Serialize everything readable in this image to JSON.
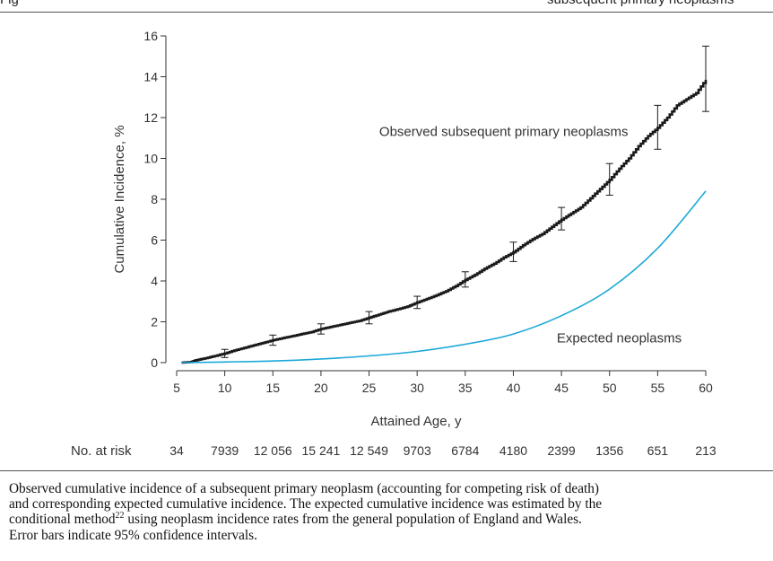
{
  "header": {
    "left_fragment": "Fig",
    "right_fragment": "subsequent primary neoplasms"
  },
  "caption": {
    "line1": "Observed cumulative incidence of a subsequent primary neoplasm (accounting for competing risk of death)",
    "line2": "and corresponding expected cumulative incidence. The expected cumulative incidence was estimated by the",
    "line3_before_ref": "conditional method",
    "line3_ref": "22",
    "line3_after_ref": " using neoplasm incidence rates from the general population of England and Wales.",
    "line4": "Error bars indicate 95% confidence intervals."
  },
  "colors": {
    "observed": "#1a1a1a",
    "expected": "#1ba8d8",
    "axis": "#333333"
  },
  "chart_data": {
    "type": "line",
    "xlabel": "Attained Age, y",
    "ylabel": "Cumulative Incidence, %",
    "xlim": [
      5,
      60
    ],
    "ylim": [
      0,
      16
    ],
    "xticks": [
      5,
      10,
      15,
      20,
      25,
      30,
      35,
      40,
      45,
      50,
      55,
      60
    ],
    "yticks": [
      0,
      2,
      4,
      6,
      8,
      10,
      12,
      14,
      16
    ],
    "grid": false,
    "series": [
      {
        "name": "Observed subsequent primary neoplasms",
        "style": "step",
        "x": [
          5.5,
          6.5,
          7,
          8,
          9,
          10,
          11,
          12,
          13,
          14,
          15,
          16,
          17,
          18,
          19,
          20,
          21,
          22,
          23,
          24,
          25,
          26,
          27,
          28,
          29,
          30,
          31,
          32,
          33,
          34,
          35,
          36,
          37,
          38,
          39,
          40,
          41,
          42,
          43,
          44,
          45,
          46,
          47,
          48,
          49,
          50,
          51,
          52,
          53,
          54,
          55,
          56,
          57,
          58,
          59,
          60
        ],
        "y": [
          0,
          0.03,
          0.12,
          0.22,
          0.33,
          0.45,
          0.6,
          0.72,
          0.85,
          0.97,
          1.1,
          1.2,
          1.3,
          1.4,
          1.5,
          1.65,
          1.75,
          1.85,
          1.95,
          2.05,
          2.2,
          2.35,
          2.5,
          2.62,
          2.75,
          2.95,
          3.12,
          3.3,
          3.5,
          3.75,
          4.05,
          4.3,
          4.6,
          4.85,
          5.15,
          5.4,
          5.75,
          6.05,
          6.3,
          6.65,
          7.0,
          7.3,
          7.6,
          8.05,
          8.5,
          8.95,
          9.5,
          10.0,
          10.6,
          11.1,
          11.5,
          12.0,
          12.6,
          12.9,
          13.2,
          13.85
        ]
      },
      {
        "name": "Expected neoplasms",
        "style": "smooth",
        "x": [
          5.5,
          7,
          10,
          15,
          20,
          25,
          30,
          35,
          40,
          45,
          50,
          55,
          60
        ],
        "y": [
          0,
          0.01,
          0.03,
          0.08,
          0.18,
          0.33,
          0.55,
          0.9,
          1.4,
          2.3,
          3.6,
          5.6,
          8.4
        ]
      }
    ],
    "error_bars": {
      "series": "Observed subsequent primary neoplasms",
      "x": [
        10,
        15,
        20,
        25,
        30,
        35,
        40,
        45,
        50,
        55,
        60
      ],
      "y": [
        0.45,
        1.1,
        1.65,
        2.2,
        2.95,
        4.05,
        5.4,
        7.0,
        8.95,
        11.5,
        13.85
      ],
      "lower": [
        0.25,
        0.85,
        1.4,
        1.9,
        2.65,
        3.7,
        4.95,
        6.5,
        8.2,
        10.45,
        12.3
      ],
      "upper": [
        0.65,
        1.35,
        1.9,
        2.5,
        3.25,
        4.45,
        5.9,
        7.6,
        9.75,
        12.6,
        15.5
      ],
      "label": "Error bars indicate 95% confidence intervals."
    },
    "annotations": [
      {
        "text": "Observed subsequent primary neoplasms",
        "x": 39,
        "y": 11.1
      },
      {
        "text": "Expected neoplasms",
        "x": 51,
        "y": 1.0
      }
    ],
    "risk_table": {
      "label": "No. at risk",
      "x": [
        5,
        10,
        15,
        20,
        25,
        30,
        35,
        40,
        45,
        50,
        55,
        60
      ],
      "counts": [
        "34",
        "7939",
        "12 056",
        "15 241",
        "12 549",
        "9703",
        "6784",
        "4180",
        "2399",
        "1356",
        "651",
        "213"
      ]
    }
  }
}
